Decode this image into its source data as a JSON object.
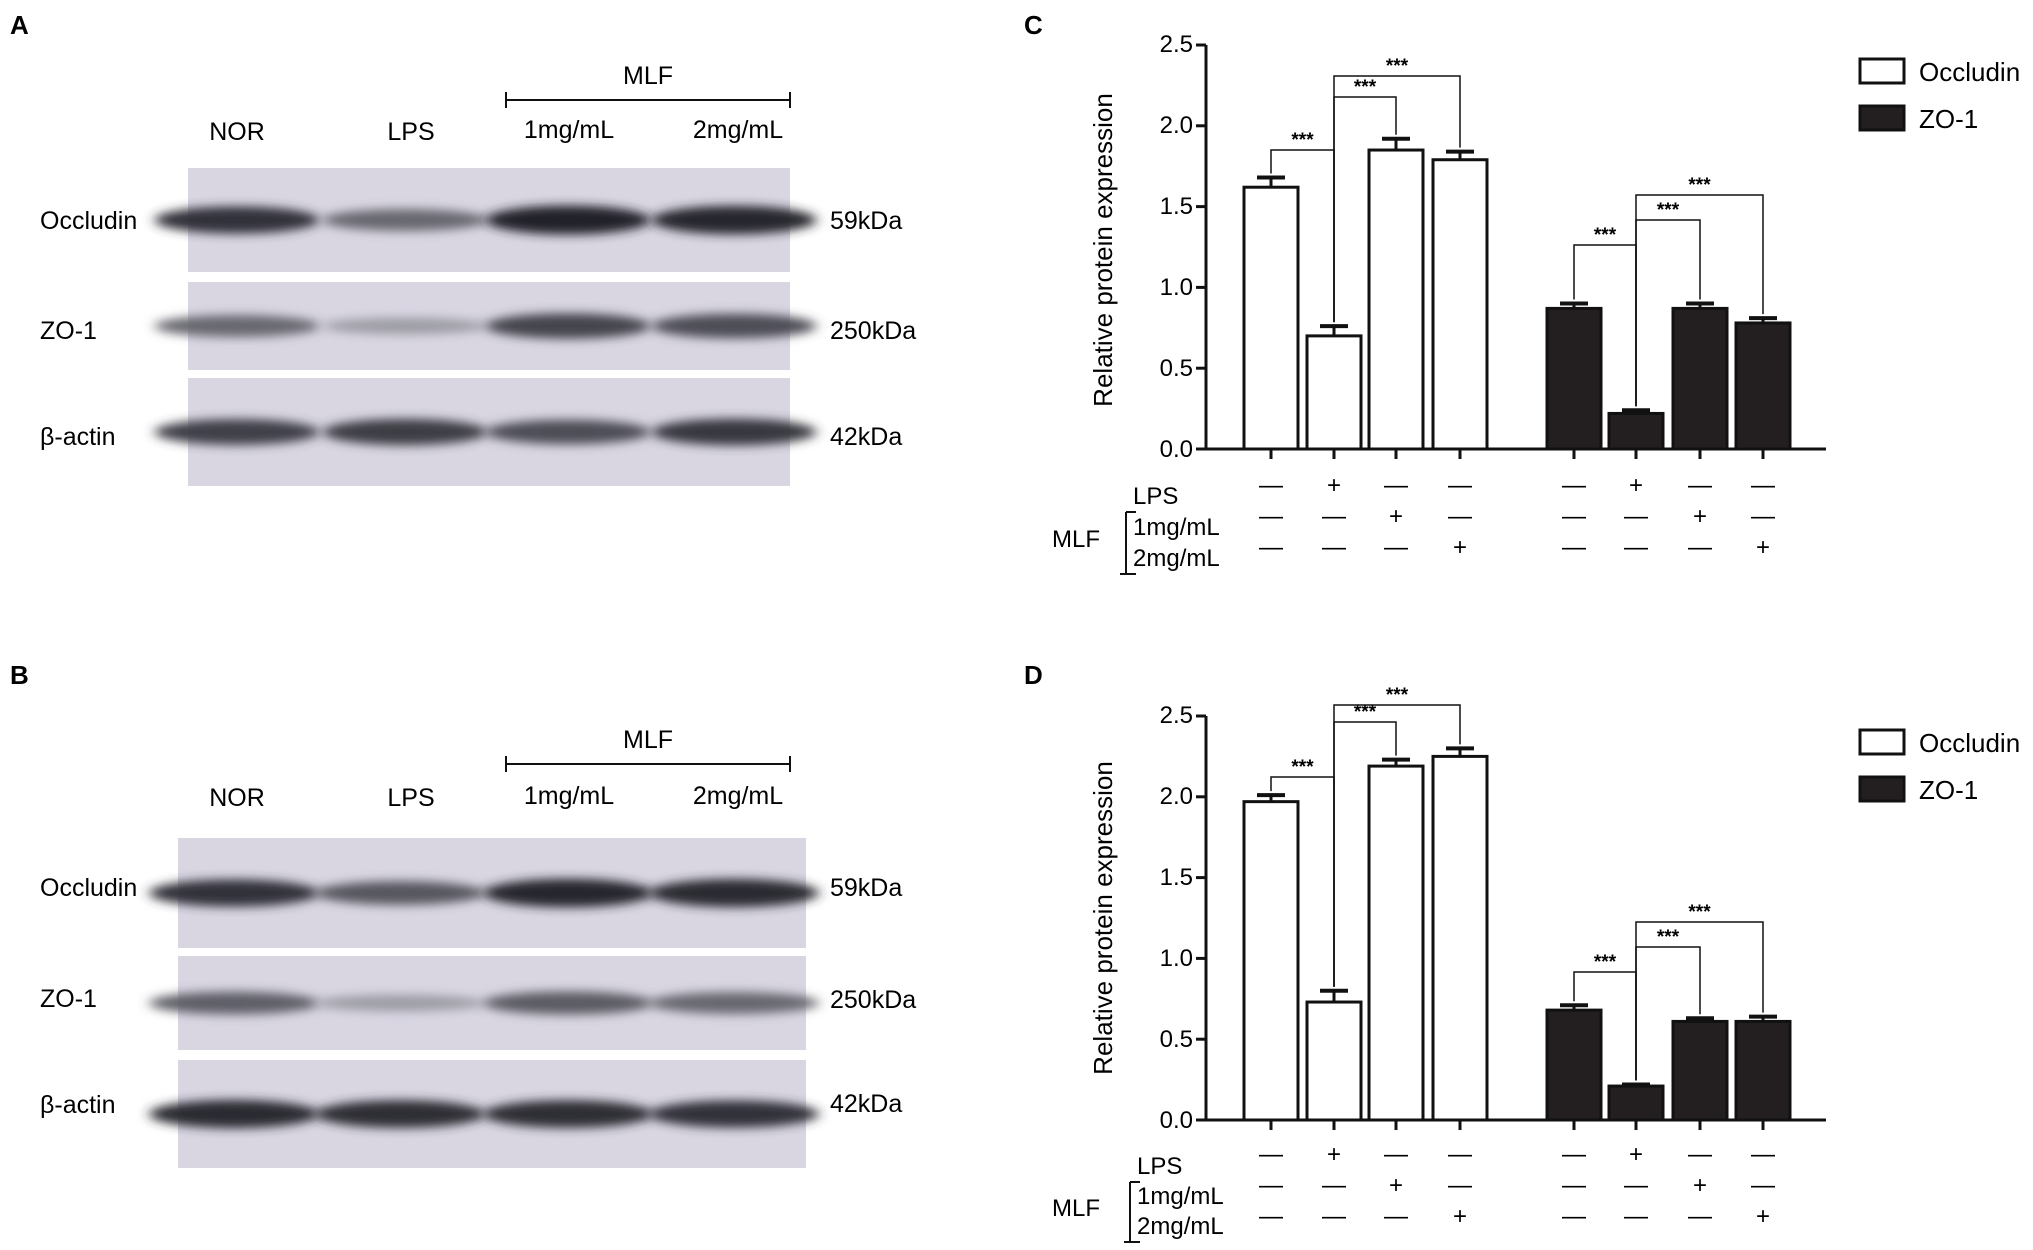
{
  "panels": {
    "A": "A",
    "B": "B",
    "C": "C",
    "D": "D"
  },
  "blots": [
    {
      "lanes": [
        "NOR",
        "LPS",
        "1mg/mL",
        "2mg/mL"
      ],
      "group_label": "MLF",
      "rows": [
        {
          "protein": "Occludin",
          "size": "59kDa",
          "intensity": [
            0.85,
            0.55,
            0.95,
            0.92
          ]
        },
        {
          "protein": "ZO-1",
          "size": "250kDa",
          "intensity": [
            0.55,
            0.25,
            0.75,
            0.7
          ]
        },
        {
          "protein": "β-actin",
          "size": "42kDa",
          "intensity": [
            0.78,
            0.8,
            0.7,
            0.82
          ]
        }
      ]
    },
    {
      "lanes": [
        "NOR",
        "LPS",
        "1mg/mL",
        "2mg/mL"
      ],
      "group_label": "MLF",
      "rows": [
        {
          "protein": "Occludin",
          "size": "59kDa",
          "intensity": [
            0.85,
            0.65,
            0.92,
            0.9
          ]
        },
        {
          "protein": "ZO-1",
          "size": "250kDa",
          "intensity": [
            0.6,
            0.25,
            0.62,
            0.55
          ]
        },
        {
          "protein": "β-actin",
          "size": "42kDa",
          "intensity": [
            0.9,
            0.88,
            0.88,
            0.85
          ]
        }
      ]
    }
  ],
  "conditions": {
    "row_labels": [
      "LPS",
      "1mg/mL",
      "2mg/mL"
    ],
    "group_label": "MLF",
    "symbols": [
      [
        "—",
        "+",
        "—",
        "—"
      ],
      [
        "—",
        "—",
        "+",
        "—"
      ],
      [
        "—",
        "—",
        "—",
        "+"
      ]
    ]
  },
  "chart_data": [
    {
      "type": "bar",
      "ylabel": "Relative protein expression",
      "ylim": [
        0,
        2.5
      ],
      "yticks": [
        "0.0",
        "0.5",
        "1.0",
        "1.5",
        "2.0",
        "2.5"
      ],
      "legend_position": "top-right",
      "series": [
        {
          "name": "Occludin",
          "color": "#ffffff",
          "values": [
            1.62,
            0.7,
            1.85,
            1.79
          ],
          "errors": [
            0.06,
            0.06,
            0.07,
            0.05
          ]
        },
        {
          "name": "ZO-1",
          "color": "#231f20",
          "values": [
            0.87,
            0.22,
            0.87,
            0.78
          ],
          "errors": [
            0.03,
            0.02,
            0.03,
            0.03
          ]
        }
      ],
      "significance": "***"
    },
    {
      "type": "bar",
      "ylabel": "Relative protein expression",
      "ylim": [
        0,
        2.5
      ],
      "yticks": [
        "0.0",
        "0.5",
        "1.0",
        "1.5",
        "2.0",
        "2.5"
      ],
      "legend_position": "top-right",
      "series": [
        {
          "name": "Occludin",
          "color": "#ffffff",
          "values": [
            1.97,
            0.73,
            2.19,
            2.25
          ],
          "errors": [
            0.04,
            0.07,
            0.04,
            0.05
          ]
        },
        {
          "name": "ZO-1",
          "color": "#231f20",
          "values": [
            0.68,
            0.21,
            0.61,
            0.61
          ],
          "errors": [
            0.03,
            0.01,
            0.02,
            0.03
          ]
        }
      ],
      "significance": "***"
    }
  ]
}
